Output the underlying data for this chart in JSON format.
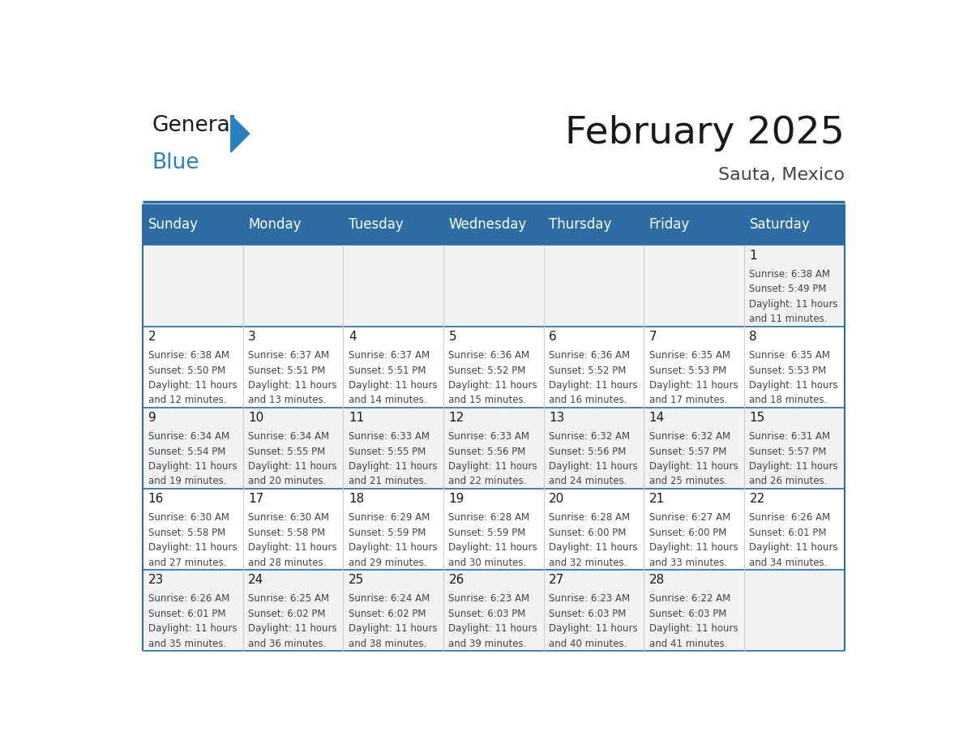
{
  "title": "February 2025",
  "subtitle": "Sauta, Mexico",
  "days_of_week": [
    "Sunday",
    "Monday",
    "Tuesday",
    "Wednesday",
    "Thursday",
    "Friday",
    "Saturday"
  ],
  "header_bg": "#2E6DA4",
  "header_text_color": "#FFFFFF",
  "cell_bg_odd": "#F2F2F2",
  "cell_bg_even": "#FFFFFF",
  "cell_text_color": "#333333",
  "day_num_color": "#1A1A1A",
  "title_color": "#1A1A1A",
  "subtitle_color": "#444444",
  "grid_color": "#CCCCCC",
  "border_color": "#2E6DA4",
  "logo_general_color": "#1A1A1A",
  "logo_blue_color": "#2E7FC0",
  "calendar_data": [
    [
      null,
      null,
      null,
      null,
      null,
      null,
      {
        "day": 1,
        "sunrise": "6:38 AM",
        "sunset": "5:49 PM",
        "daylight": "11 hours and 11 minutes."
      }
    ],
    [
      {
        "day": 2,
        "sunrise": "6:38 AM",
        "sunset": "5:50 PM",
        "daylight": "11 hours and 12 minutes."
      },
      {
        "day": 3,
        "sunrise": "6:37 AM",
        "sunset": "5:51 PM",
        "daylight": "11 hours and 13 minutes."
      },
      {
        "day": 4,
        "sunrise": "6:37 AM",
        "sunset": "5:51 PM",
        "daylight": "11 hours and 14 minutes."
      },
      {
        "day": 5,
        "sunrise": "6:36 AM",
        "sunset": "5:52 PM",
        "daylight": "11 hours and 15 minutes."
      },
      {
        "day": 6,
        "sunrise": "6:36 AM",
        "sunset": "5:52 PM",
        "daylight": "11 hours and 16 minutes."
      },
      {
        "day": 7,
        "sunrise": "6:35 AM",
        "sunset": "5:53 PM",
        "daylight": "11 hours and 17 minutes."
      },
      {
        "day": 8,
        "sunrise": "6:35 AM",
        "sunset": "5:53 PM",
        "daylight": "11 hours and 18 minutes."
      }
    ],
    [
      {
        "day": 9,
        "sunrise": "6:34 AM",
        "sunset": "5:54 PM",
        "daylight": "11 hours and 19 minutes."
      },
      {
        "day": 10,
        "sunrise": "6:34 AM",
        "sunset": "5:55 PM",
        "daylight": "11 hours and 20 minutes."
      },
      {
        "day": 11,
        "sunrise": "6:33 AM",
        "sunset": "5:55 PM",
        "daylight": "11 hours and 21 minutes."
      },
      {
        "day": 12,
        "sunrise": "6:33 AM",
        "sunset": "5:56 PM",
        "daylight": "11 hours and 22 minutes."
      },
      {
        "day": 13,
        "sunrise": "6:32 AM",
        "sunset": "5:56 PM",
        "daylight": "11 hours and 24 minutes."
      },
      {
        "day": 14,
        "sunrise": "6:32 AM",
        "sunset": "5:57 PM",
        "daylight": "11 hours and 25 minutes."
      },
      {
        "day": 15,
        "sunrise": "6:31 AM",
        "sunset": "5:57 PM",
        "daylight": "11 hours and 26 minutes."
      }
    ],
    [
      {
        "day": 16,
        "sunrise": "6:30 AM",
        "sunset": "5:58 PM",
        "daylight": "11 hours and 27 minutes."
      },
      {
        "day": 17,
        "sunrise": "6:30 AM",
        "sunset": "5:58 PM",
        "daylight": "11 hours and 28 minutes."
      },
      {
        "day": 18,
        "sunrise": "6:29 AM",
        "sunset": "5:59 PM",
        "daylight": "11 hours and 29 minutes."
      },
      {
        "day": 19,
        "sunrise": "6:28 AM",
        "sunset": "5:59 PM",
        "daylight": "11 hours and 30 minutes."
      },
      {
        "day": 20,
        "sunrise": "6:28 AM",
        "sunset": "6:00 PM",
        "daylight": "11 hours and 32 minutes."
      },
      {
        "day": 21,
        "sunrise": "6:27 AM",
        "sunset": "6:00 PM",
        "daylight": "11 hours and 33 minutes."
      },
      {
        "day": 22,
        "sunrise": "6:26 AM",
        "sunset": "6:01 PM",
        "daylight": "11 hours and 34 minutes."
      }
    ],
    [
      {
        "day": 23,
        "sunrise": "6:26 AM",
        "sunset": "6:01 PM",
        "daylight": "11 hours and 35 minutes."
      },
      {
        "day": 24,
        "sunrise": "6:25 AM",
        "sunset": "6:02 PM",
        "daylight": "11 hours and 36 minutes."
      },
      {
        "day": 25,
        "sunrise": "6:24 AM",
        "sunset": "6:02 PM",
        "daylight": "11 hours and 38 minutes."
      },
      {
        "day": 26,
        "sunrise": "6:23 AM",
        "sunset": "6:03 PM",
        "daylight": "11 hours and 39 minutes."
      },
      {
        "day": 27,
        "sunrise": "6:23 AM",
        "sunset": "6:03 PM",
        "daylight": "11 hours and 40 minutes."
      },
      {
        "day": 28,
        "sunrise": "6:22 AM",
        "sunset": "6:03 PM",
        "daylight": "11 hours and 41 minutes."
      },
      null
    ]
  ]
}
